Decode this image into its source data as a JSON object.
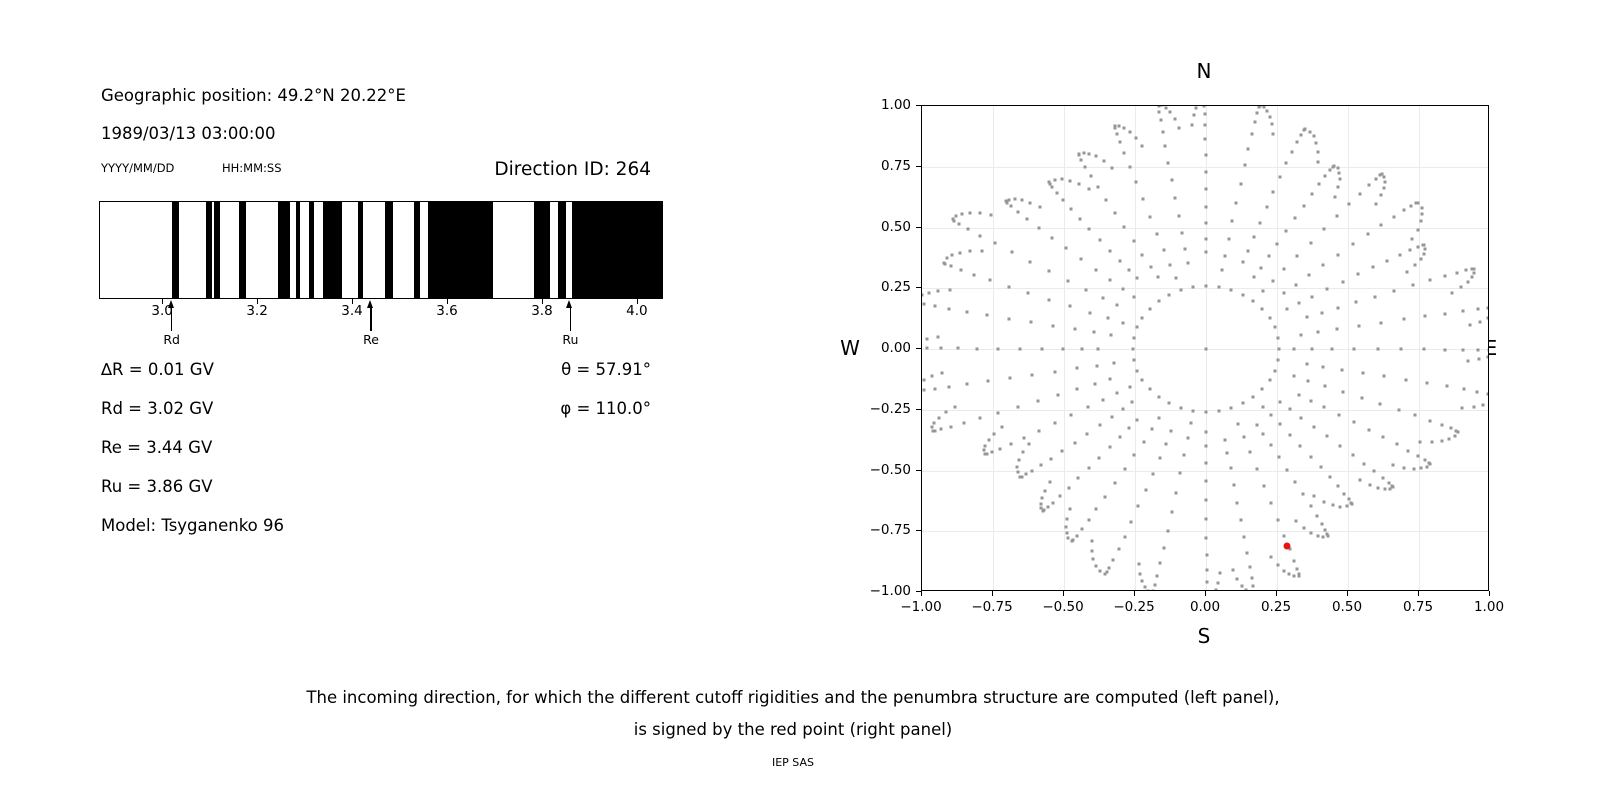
{
  "left_panel": {
    "geo_position": "Geographic position: 49.2°N 20.22°E",
    "datetime": "1989/03/13 03:00:00",
    "date_format": "YYYY/MM/DD",
    "time_format": "HH:MM:SS",
    "direction_id": "Direction ID: 264",
    "params": [
      "∆R = 0.01 GV",
      "Rd = 3.02 GV",
      "Re = 3.44 GV",
      "Ru = 3.86 GV",
      "Model: Tsyganenko 96"
    ],
    "theta": "θ = 57.91°",
    "phi": "φ = 110.0°"
  },
  "caption": {
    "line1": "The incoming direction, for which the different cutoff rigidities and the penumbra structure are computed (left panel),",
    "line2": "is signed by the red point (right panel)",
    "credit": "IEP SAS"
  },
  "chart_data": [
    {
      "type": "barcode-penumbra",
      "description": "Cosmic-ray cutoff penumbra: black bands = forbidden rigidity intervals (GV)",
      "xlim": [
        2.867,
        4.055
      ],
      "xticks": [
        3.0,
        3.2,
        3.4,
        3.6,
        3.8,
        4.0
      ],
      "xtick_labels": [
        "3.0",
        "3.2",
        "3.4",
        "3.6",
        "3.8",
        "4.0"
      ],
      "bars_gv": [
        [
          3.019,
          3.034
        ],
        [
          3.091,
          3.103
        ],
        [
          3.108,
          3.119
        ],
        [
          3.16,
          3.174
        ],
        [
          3.242,
          3.267
        ],
        [
          3.279,
          3.288
        ],
        [
          3.307,
          3.317
        ],
        [
          3.337,
          3.377
        ],
        [
          3.41,
          3.422
        ],
        [
          3.467,
          3.484
        ],
        [
          3.529,
          3.54
        ],
        [
          3.557,
          3.695
        ],
        [
          3.782,
          3.815
        ],
        [
          3.831,
          3.849
        ],
        [
          3.861,
          4.055
        ]
      ],
      "arrows": [
        {
          "label": "Rd",
          "value": 3.02
        },
        {
          "label": "Re",
          "value": 3.44
        },
        {
          "label": "Ru",
          "value": 3.86
        }
      ],
      "bar_color": "#000000"
    },
    {
      "type": "scatter",
      "description": "Sky map of incoming-direction grid; red point = selected direction ID 264",
      "cardinal": {
        "n": "N",
        "e": "E",
        "s": "S",
        "w": "W"
      },
      "xlim": [
        -1,
        1
      ],
      "ylim": [
        -1,
        1
      ],
      "ticks": [
        -1,
        -0.75,
        -0.5,
        -0.25,
        0,
        0.25,
        0.5,
        0.75,
        1
      ],
      "tick_labels": [
        "−1.00",
        "−0.75",
        "−0.50",
        "−0.25",
        "0.00",
        "0.25",
        "0.50",
        "0.75",
        "1.00"
      ],
      "grid": true,
      "dot_color": "#969696",
      "grid_color": "#ebebeb",
      "center_dot": {
        "x": 0,
        "y": 0
      },
      "ring": {
        "radius": 0.2588,
        "count": 36
      },
      "spokes": {
        "count": 36,
        "bearing_step_deg": 10,
        "dots_main": 12,
        "dots_hook": 5,
        "ease_start_rad": 0.75,
        "r_start": [
          0.4,
          0.33,
          0.38,
          0.34,
          0.31,
          0.36,
          0.33,
          0.38,
          0.34,
          0.31,
          0.36,
          0.33,
          0.38,
          0.34,
          0.31,
          0.36,
          0.33,
          0.38,
          0.34,
          0.31,
          0.36,
          0.33,
          0.38,
          0.34,
          0.31,
          0.36,
          0.33,
          0.38,
          0.34,
          0.31,
          0.36,
          0.33,
          0.38,
          0.34,
          0.31,
          0.36
        ],
        "r_max": [
          1.03,
          1.02,
          0.97,
          0.88,
          0.95,
          0.96,
          0.88,
          1.0,
          1.04,
          1.03,
          1.04,
          0.95,
          0.92,
          0.87,
          0.82,
          0.88,
          0.99,
          1.02,
          1.03,
          1.02,
          0.99,
          0.92,
          0.88,
          0.84,
          0.89,
          1.02,
          1.04,
          1.05,
          1.04,
          0.99,
          1.04,
          0.93,
          0.88,
          0.92,
          0.97,
          1.02
        ],
        "drift_deg": [
          -3,
          5,
          7,
          6,
          5,
          8,
          6,
          5,
          4,
          3,
          5,
          7,
          6,
          5,
          8,
          6,
          5,
          4,
          -3,
          5,
          7,
          6,
          5,
          8,
          6,
          5,
          4,
          3,
          5,
          7,
          6,
          5,
          8,
          6,
          5,
          4
        ]
      },
      "red_point": {
        "x": 0.285,
        "y": -0.81,
        "color": "#e81414",
        "bearing_deg": 160,
        "zenith_deg": 57.91
      }
    }
  ]
}
